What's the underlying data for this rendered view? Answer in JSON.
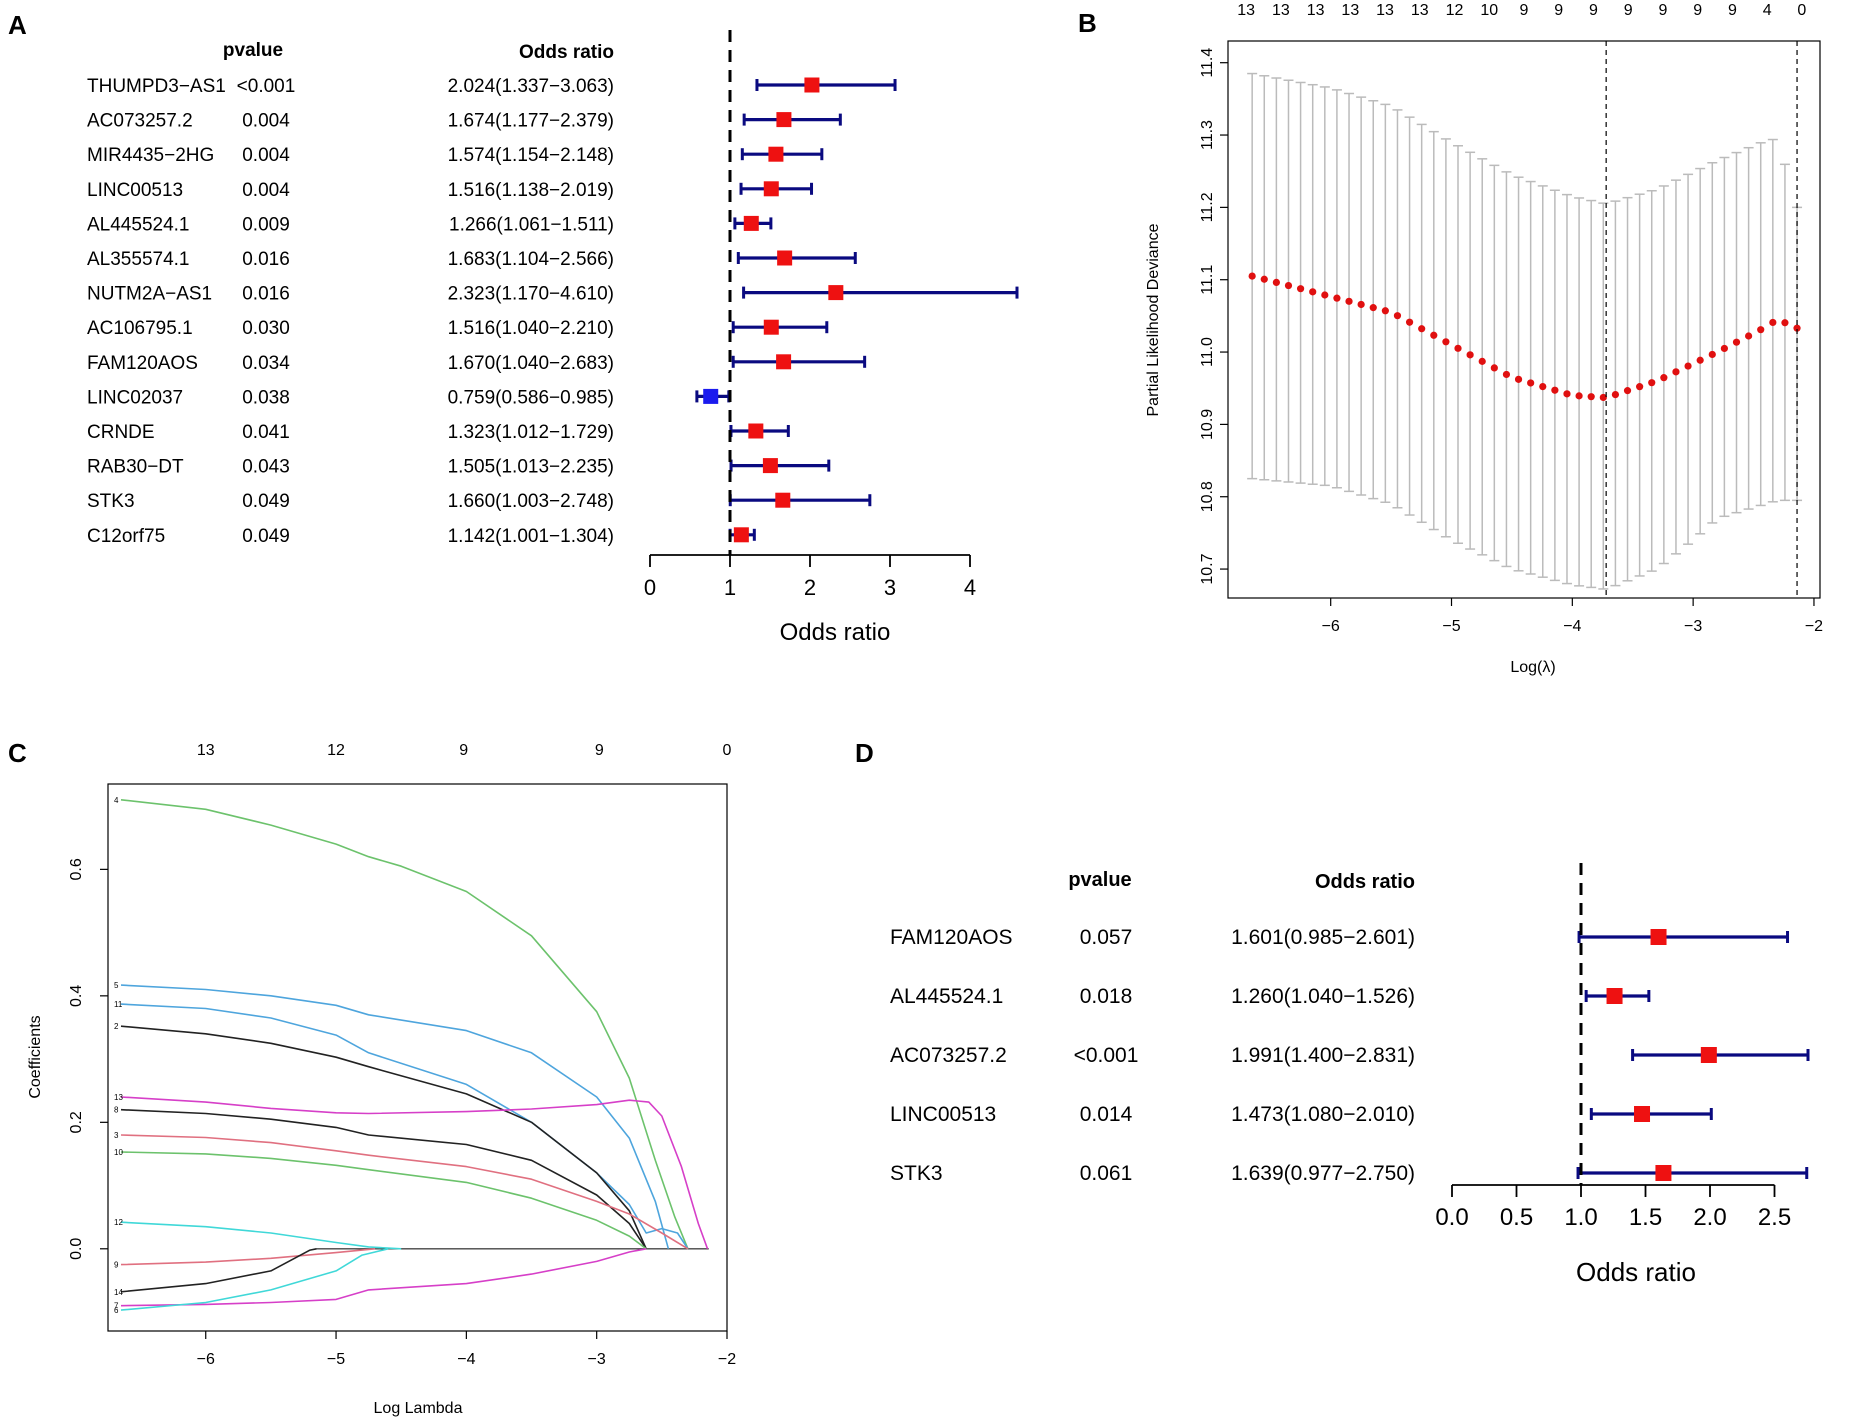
{
  "panel_labels": {
    "a": "A",
    "b": "B",
    "c": "C",
    "d": "D"
  },
  "colors": {
    "point": "#ee1111",
    "point_low": "#1a1aee",
    "ci": "#0a0a80",
    "axis": "#000000",
    "cv_bar": "#bbbbbb",
    "cv_point": "#e01010"
  },
  "chart_data": [
    {
      "panel": "A",
      "type": "forest",
      "title": "",
      "col_headers": {
        "pvalue": "pvalue",
        "or": "Odds ratio"
      },
      "xlabel": "Odds ratio",
      "xlim": [
        0,
        4
      ],
      "xticks": [
        "0",
        "1",
        "2",
        "3",
        "4"
      ],
      "ref_line": 1,
      "rows": [
        {
          "gene": "THUMPD3−AS1",
          "pvalue": "<0.001",
          "or_text": "2.024(1.337−3.063)",
          "or": 2.024,
          "lo": 1.337,
          "hi": 3.063
        },
        {
          "gene": "AC073257.2",
          "pvalue": "0.004",
          "or_text": "1.674(1.177−2.379)",
          "or": 1.674,
          "lo": 1.177,
          "hi": 2.379
        },
        {
          "gene": "MIR4435−2HG",
          "pvalue": "0.004",
          "or_text": "1.574(1.154−2.148)",
          "or": 1.574,
          "lo": 1.154,
          "hi": 2.148
        },
        {
          "gene": "LINC00513",
          "pvalue": "0.004",
          "or_text": "1.516(1.138−2.019)",
          "or": 1.516,
          "lo": 1.138,
          "hi": 2.019
        },
        {
          "gene": "AL445524.1",
          "pvalue": "0.009",
          "or_text": "1.266(1.061−1.511)",
          "or": 1.266,
          "lo": 1.061,
          "hi": 1.511
        },
        {
          "gene": "AL355574.1",
          "pvalue": "0.016",
          "or_text": "1.683(1.104−2.566)",
          "or": 1.683,
          "lo": 1.104,
          "hi": 2.566
        },
        {
          "gene": "NUTM2A−AS1",
          "pvalue": "0.016",
          "or_text": "2.323(1.170−4.610)",
          "or": 2.323,
          "lo": 1.17,
          "hi": 4.61
        },
        {
          "gene": "AC106795.1",
          "pvalue": "0.030",
          "or_text": "1.516(1.040−2.210)",
          "or": 1.516,
          "lo": 1.04,
          "hi": 2.21
        },
        {
          "gene": "FAM120AOS",
          "pvalue": "0.034",
          "or_text": "1.670(1.040−2.683)",
          "or": 1.67,
          "lo": 1.04,
          "hi": 2.683
        },
        {
          "gene": "LINC02037",
          "pvalue": "0.038",
          "or_text": "0.759(0.586−0.985)",
          "or": 0.759,
          "lo": 0.586,
          "hi": 0.985
        },
        {
          "gene": "CRNDE",
          "pvalue": "0.041",
          "or_text": "1.323(1.012−1.729)",
          "or": 1.323,
          "lo": 1.012,
          "hi": 1.729
        },
        {
          "gene": "RAB30−DT",
          "pvalue": "0.043",
          "or_text": "1.505(1.013−2.235)",
          "or": 1.505,
          "lo": 1.013,
          "hi": 2.235
        },
        {
          "gene": "STK3",
          "pvalue": "0.049",
          "or_text": "1.660(1.003−2.748)",
          "or": 1.66,
          "lo": 1.003,
          "hi": 2.748
        },
        {
          "gene": "C12orf75",
          "pvalue": "0.049",
          "or_text": "1.142(1.001−1.304)",
          "or": 1.142,
          "lo": 1.001,
          "hi": 1.304
        }
      ]
    },
    {
      "panel": "B",
      "type": "errorbar",
      "title": "",
      "xlabel": "Log(λ)",
      "ylabel": "Partial Likelihood Deviance",
      "xlim": [
        -6.85,
        -1.95
      ],
      "ylim": [
        10.66,
        11.43
      ],
      "xticks": [
        "-6",
        "-5",
        "-4",
        "-3",
        "-2"
      ],
      "yticks": [
        "10.7",
        "10.8",
        "10.9",
        "11.0",
        "11.1",
        "11.2",
        "11.3",
        "11.4"
      ],
      "top_ticks": [
        "13",
        "13",
        "13",
        "13",
        "13",
        "13",
        "12",
        "10",
        "9",
        "9",
        "9",
        "9",
        "9",
        "9",
        "9",
        "4",
        "0"
      ],
      "top_range": [
        -6.7,
        -2.1
      ],
      "vlines": [
        -3.72,
        -2.14
      ],
      "n_points": 46,
      "x_start": -6.65,
      "x_end": -2.14,
      "mean_anchors": [
        [
          -6.65,
          11.105
        ],
        [
          -5.5,
          11.055
        ],
        [
          -5.0,
          11.01
        ],
        [
          -4.5,
          10.965
        ],
        [
          -4.0,
          10.94
        ],
        [
          -3.72,
          10.937
        ],
        [
          -3.3,
          10.96
        ],
        [
          -2.8,
          11.0
        ],
        [
          -2.45,
          11.03
        ],
        [
          -2.3,
          11.045
        ],
        [
          -2.14,
          11.033
        ]
      ],
      "upper_anchors": [
        [
          -6.65,
          11.385
        ],
        [
          -6.0,
          11.365
        ],
        [
          -5.5,
          11.34
        ],
        [
          -5.0,
          11.29
        ],
        [
          -4.5,
          11.245
        ],
        [
          -4.0,
          11.215
        ],
        [
          -3.72,
          11.205
        ],
        [
          -3.3,
          11.225
        ],
        [
          -2.8,
          11.265
        ],
        [
          -2.4,
          11.292
        ],
        [
          -2.3,
          11.295
        ],
        [
          -2.14,
          11.2
        ]
      ],
      "lower_anchors": [
        [
          -6.65,
          10.825
        ],
        [
          -6.0,
          10.815
        ],
        [
          -5.5,
          10.79
        ],
        [
          -5.0,
          10.74
        ],
        [
          -4.5,
          10.7
        ],
        [
          -4.0,
          10.678
        ],
        [
          -3.72,
          10.672
        ],
        [
          -3.3,
          10.7
        ],
        [
          -3.0,
          10.74
        ],
        [
          -2.8,
          10.77
        ],
        [
          -2.5,
          10.785
        ],
        [
          -2.3,
          10.795
        ],
        [
          -2.14,
          10.795
        ]
      ]
    },
    {
      "panel": "C",
      "type": "line",
      "title": "",
      "xlabel": "Log Lambda",
      "ylabel": "Coefficients",
      "xlim": [
        -6.75,
        -2.0
      ],
      "ylim": [
        -0.13,
        0.735
      ],
      "xticks": [
        "-6",
        "-5",
        "-4",
        "-3",
        "-2"
      ],
      "yticks": [
        "0.0",
        "0.2",
        "0.4",
        "0.6"
      ],
      "top_ticks": [
        "13",
        "12",
        "9",
        "9",
        "0"
      ],
      "top_positions": [
        -6.0,
        -5.0,
        -4.02,
        -2.98,
        -2.0
      ],
      "series": [
        {
          "name": "4",
          "color": "#6cc26c",
          "points": [
            [
              -6.65,
              0.71
            ],
            [
              -6.0,
              0.695
            ],
            [
              -5.5,
              0.67
            ],
            [
              -5.0,
              0.64
            ],
            [
              -4.75,
              0.62
            ],
            [
              -4.5,
              0.605
            ],
            [
              -4.0,
              0.565
            ],
            [
              -3.5,
              0.495
            ],
            [
              -3.0,
              0.375
            ],
            [
              -2.75,
              0.27
            ],
            [
              -2.55,
              0.14
            ],
            [
              -2.4,
              0.05
            ],
            [
              -2.3,
              0.0
            ]
          ]
        },
        {
          "name": "5",
          "color": "#4ea5dd",
          "points": [
            [
              -6.65,
              0.417
            ],
            [
              -6.0,
              0.41
            ],
            [
              -5.5,
              0.4
            ],
            [
              -5.0,
              0.385
            ],
            [
              -4.75,
              0.37
            ],
            [
              -4.0,
              0.345
            ],
            [
              -3.5,
              0.31
            ],
            [
              -3.0,
              0.24
            ],
            [
              -2.75,
              0.175
            ],
            [
              -2.55,
              0.075
            ],
            [
              -2.45,
              0.0
            ]
          ]
        },
        {
          "name": "11",
          "color": "#4ea5dd",
          "points": [
            [
              -6.65,
              0.387
            ],
            [
              -6.0,
              0.38
            ],
            [
              -5.5,
              0.365
            ],
            [
              -5.0,
              0.338
            ],
            [
              -4.75,
              0.31
            ],
            [
              -4.0,
              0.26
            ],
            [
              -3.5,
              0.2
            ],
            [
              -3.0,
              0.12
            ],
            [
              -2.75,
              0.07
            ],
            [
              -2.62,
              0.025
            ],
            [
              -2.5,
              0.032
            ],
            [
              -2.38,
              0.025
            ],
            [
              -2.3,
              0.0
            ]
          ]
        },
        {
          "name": "2",
          "color": "#222222",
          "points": [
            [
              -6.65,
              0.352
            ],
            [
              -6.0,
              0.34
            ],
            [
              -5.5,
              0.325
            ],
            [
              -5.0,
              0.303
            ],
            [
              -4.75,
              0.288
            ],
            [
              -4.0,
              0.245
            ],
            [
              -3.5,
              0.2
            ],
            [
              -3.0,
              0.12
            ],
            [
              -2.75,
              0.06
            ],
            [
              -2.62,
              0.0
            ]
          ]
        },
        {
          "name": "13",
          "color": "#d63fc8",
          "points": [
            [
              -6.65,
              0.24
            ],
            [
              -6.0,
              0.232
            ],
            [
              -5.5,
              0.222
            ],
            [
              -5.0,
              0.215
            ],
            [
              -4.75,
              0.214
            ],
            [
              -4.0,
              0.217
            ],
            [
              -3.5,
              0.221
            ],
            [
              -3.0,
              0.228
            ],
            [
              -2.75,
              0.235
            ],
            [
              -2.6,
              0.232
            ],
            [
              -2.5,
              0.21
            ],
            [
              -2.35,
              0.13
            ],
            [
              -2.22,
              0.04
            ],
            [
              -2.15,
              0.0
            ]
          ]
        },
        {
          "name": "8",
          "color": "#222222",
          "points": [
            [
              -6.65,
              0.22
            ],
            [
              -6.0,
              0.214
            ],
            [
              -5.5,
              0.205
            ],
            [
              -5.0,
              0.192
            ],
            [
              -4.75,
              0.18
            ],
            [
              -4.0,
              0.165
            ],
            [
              -3.5,
              0.14
            ],
            [
              -3.0,
              0.085
            ],
            [
              -2.75,
              0.04
            ],
            [
              -2.62,
              0.0
            ]
          ]
        },
        {
          "name": "3",
          "color": "#e07080",
          "points": [
            [
              -6.65,
              0.18
            ],
            [
              -6.0,
              0.176
            ],
            [
              -5.5,
              0.168
            ],
            [
              -5.0,
              0.155
            ],
            [
              -4.75,
              0.148
            ],
            [
              -4.0,
              0.13
            ],
            [
              -3.5,
              0.11
            ],
            [
              -3.0,
              0.075
            ],
            [
              -2.75,
              0.055
            ],
            [
              -2.5,
              0.025
            ],
            [
              -2.3,
              0.0
            ]
          ]
        },
        {
          "name": "10",
          "color": "#6cc26c",
          "points": [
            [
              -6.65,
              0.153
            ],
            [
              -6.0,
              0.15
            ],
            [
              -5.5,
              0.143
            ],
            [
              -5.0,
              0.132
            ],
            [
              -4.75,
              0.125
            ],
            [
              -4.0,
              0.105
            ],
            [
              -3.5,
              0.08
            ],
            [
              -3.0,
              0.045
            ],
            [
              -2.75,
              0.02
            ],
            [
              -2.62,
              0.0
            ]
          ]
        },
        {
          "name": "12",
          "color": "#40d8d8",
          "points": [
            [
              -6.65,
              0.042
            ],
            [
              -6.0,
              0.035
            ],
            [
              -5.5,
              0.025
            ],
            [
              -5.0,
              0.01
            ],
            [
              -4.75,
              0.003
            ],
            [
              -4.5,
              0.0
            ]
          ]
        },
        {
          "name": "9",
          "color": "#e07080",
          "points": [
            [
              -6.65,
              -0.025
            ],
            [
              -6.0,
              -0.021
            ],
            [
              -5.5,
              -0.015
            ],
            [
              -5.0,
              -0.006
            ],
            [
              -4.75,
              -0.001
            ],
            [
              -4.7,
              0.0
            ]
          ]
        },
        {
          "name": "14",
          "color": "#222222",
          "points": [
            [
              -6.65,
              -0.068
            ],
            [
              -6.0,
              -0.055
            ],
            [
              -5.5,
              -0.035
            ],
            [
              -5.2,
              -0.002
            ],
            [
              -5.15,
              0.0
            ]
          ]
        },
        {
          "name": "7",
          "color": "#d63fc8",
          "points": [
            [
              -6.65,
              -0.09
            ],
            [
              -6.0,
              -0.088
            ],
            [
              -5.5,
              -0.085
            ],
            [
              -5.0,
              -0.08
            ],
            [
              -4.75,
              -0.065
            ],
            [
              -4.0,
              -0.055
            ],
            [
              -3.5,
              -0.04
            ],
            [
              -3.0,
              -0.02
            ],
            [
              -2.75,
              -0.005
            ],
            [
              -2.62,
              0.0
            ]
          ]
        },
        {
          "name": "6",
          "color": "#40d8d8",
          "points": [
            [
              -6.65,
              -0.097
            ],
            [
              -6.0,
              -0.085
            ],
            [
              -5.5,
              -0.065
            ],
            [
              -5.0,
              -0.035
            ],
            [
              -4.8,
              -0.01
            ],
            [
              -4.6,
              0.0
            ]
          ]
        }
      ]
    },
    {
      "panel": "D",
      "type": "forest",
      "title": "",
      "col_headers": {
        "pvalue": "pvalue",
        "or": "Odds ratio"
      },
      "xlabel": "Odds ratio",
      "xlim": [
        0,
        2.5
      ],
      "xticks": [
        "0.0",
        "0.5",
        "1.0",
        "1.5",
        "2.0",
        "2.5"
      ],
      "ref_line": 1,
      "rows": [
        {
          "gene": "FAM120AOS",
          "pvalue": "0.057",
          "or_text": "1.601(0.985−2.601)",
          "or": 1.601,
          "lo": 0.985,
          "hi": 2.601
        },
        {
          "gene": "AL445524.1",
          "pvalue": "0.018",
          "or_text": "1.260(1.040−1.526)",
          "or": 1.26,
          "lo": 1.04,
          "hi": 1.526
        },
        {
          "gene": "AC073257.2",
          "pvalue": "<0.001",
          "or_text": "1.991(1.400−2.831)",
          "or": 1.991,
          "lo": 1.4,
          "hi": 2.831
        },
        {
          "gene": "LINC00513",
          "pvalue": "0.014",
          "or_text": "1.473(1.080−2.010)",
          "or": 1.473,
          "lo": 1.08,
          "hi": 2.01
        },
        {
          "gene": "STK3",
          "pvalue": "0.061",
          "or_text": "1.639(0.977−2.750)",
          "or": 1.639,
          "lo": 0.977,
          "hi": 2.75
        }
      ]
    }
  ]
}
